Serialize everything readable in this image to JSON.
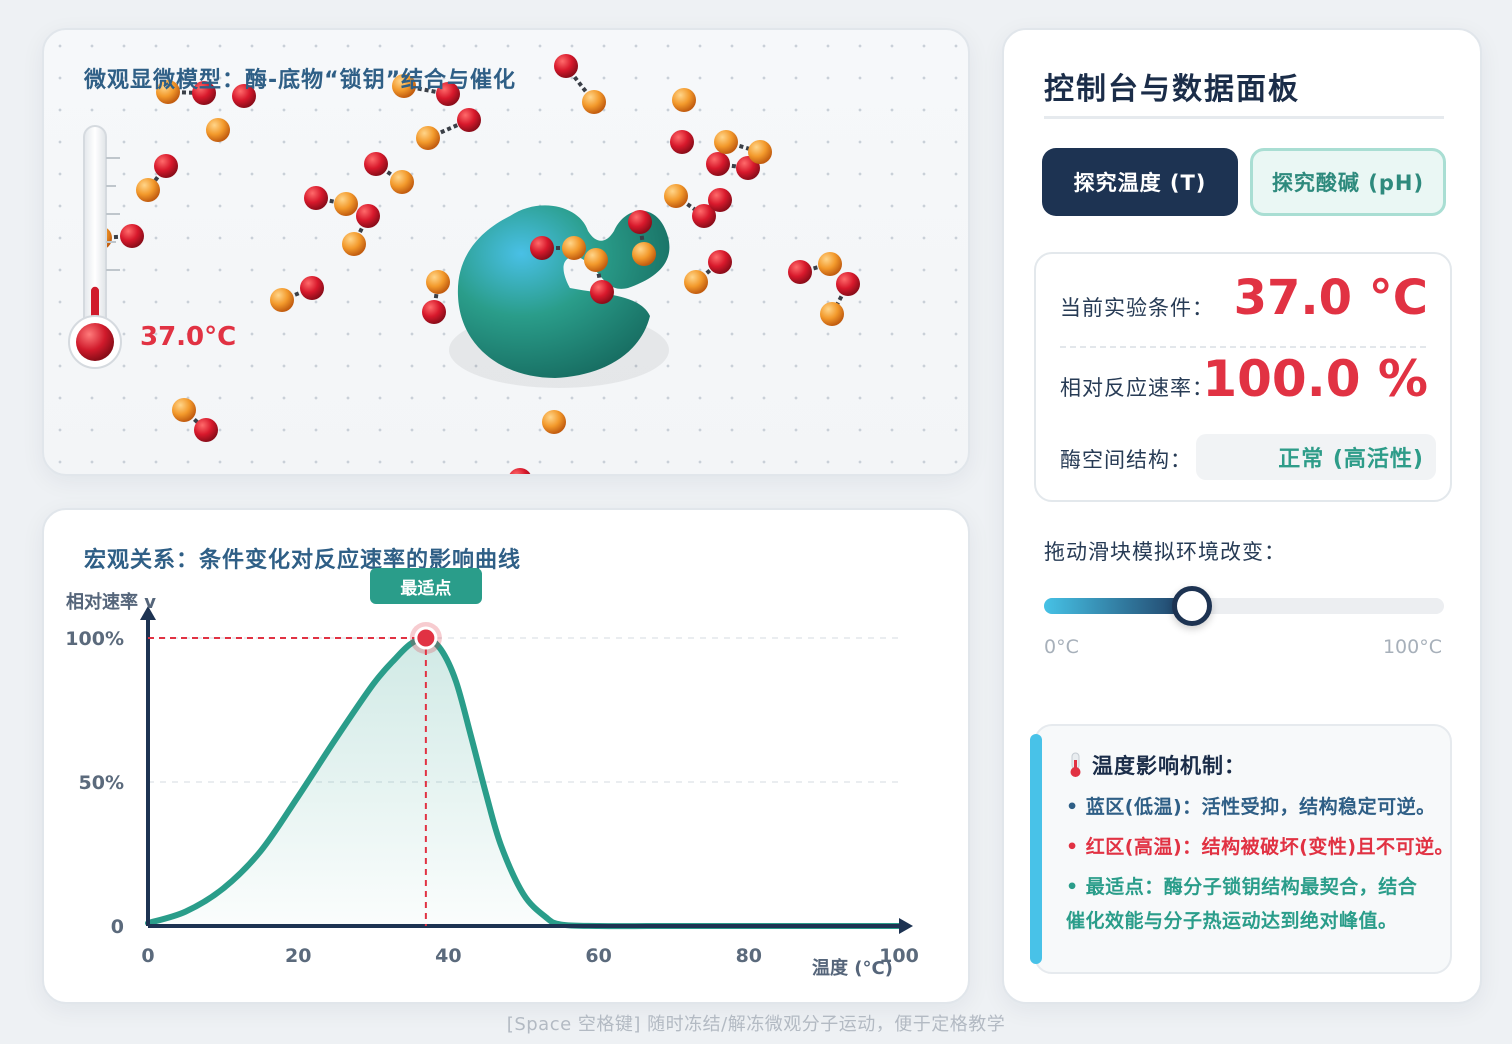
{
  "micro": {
    "title": "微观显微模型：酶-底物“锁钥”结合与催化",
    "thermo_reading": "37.0°C",
    "thermo_level": 0.37
  },
  "macro": {
    "title": "宏观关系：条件变化对反应速率的影响曲线",
    "optimum_tag": "最适点"
  },
  "chart_data": {
    "type": "line",
    "title": "",
    "xlabel": "温度 (°C)",
    "ylabel": "相对速率 v",
    "xlim": [
      0,
      100
    ],
    "ylim": [
      0,
      100
    ],
    "x_ticks": [
      "0",
      "20",
      "40",
      "60",
      "80",
      "100"
    ],
    "y_ticks": [
      "0",
      "50%",
      "100%"
    ],
    "y_tick_values": [
      0,
      50,
      100
    ],
    "x_tick_values": [
      0,
      20,
      40,
      60,
      80,
      100
    ],
    "series": [
      {
        "x": [
          0,
          5,
          10,
          15,
          20,
          25,
          30,
          33,
          35,
          37,
          39,
          41,
          43,
          45,
          47,
          50,
          53,
          55,
          60,
          70,
          80,
          90,
          100
        ],
        "y": [
          1,
          5,
          13,
          26,
          45,
          65,
          84,
          93,
          98,
          100,
          96,
          85,
          66,
          46,
          28,
          11,
          3,
          0.5,
          0,
          0,
          0,
          0,
          0
        ]
      }
    ],
    "optimum": {
      "x": 37,
      "y": 100
    },
    "grid": true,
    "colors": {
      "line": "#2a9d8a",
      "optimum": "#e13243"
    }
  },
  "console": {
    "title": "控制台与数据面板",
    "tabs": [
      {
        "label": "探究温度 (T)",
        "active": true
      },
      {
        "label": "探究酸碱 (pH)",
        "active": false
      }
    ],
    "condition_label": "当前实验条件：",
    "condition_value": "37.0 °C",
    "rate_label": "相对反应速率：",
    "rate_value": "100.0 %",
    "structure_label": "酶空间结构：",
    "structure_value": "正常 (高活性)",
    "slider_label": "拖动滑块模拟环境改变：",
    "slider_min": "0°C",
    "slider_max": "100°C",
    "slider_value": 0.37,
    "mechanism": {
      "icon": "thermometer-icon",
      "title": "温度影响机制：",
      "items": [
        {
          "text": "蓝区(低温)：活性受抑，结构稳定可逆。",
          "color": "#2f5f86"
        },
        {
          "text": "红区(高温)：结构被破坏(变性)且不可逆。",
          "color": "#e13243"
        },
        {
          "text": "最适点：酶分子锁钥结构最契合，结合",
          "color": "#2a9d8a"
        }
      ],
      "continuation": "催化效能与分子热运动达到绝对峰值。"
    }
  },
  "footer": "[Space 空格键] 随时冻结/解冻微观分子运动，便于定格教学",
  "colors": {
    "accent": "#1d3352",
    "teal": "#2a9d8a",
    "red": "#e13243",
    "orange": "#f0962a"
  }
}
